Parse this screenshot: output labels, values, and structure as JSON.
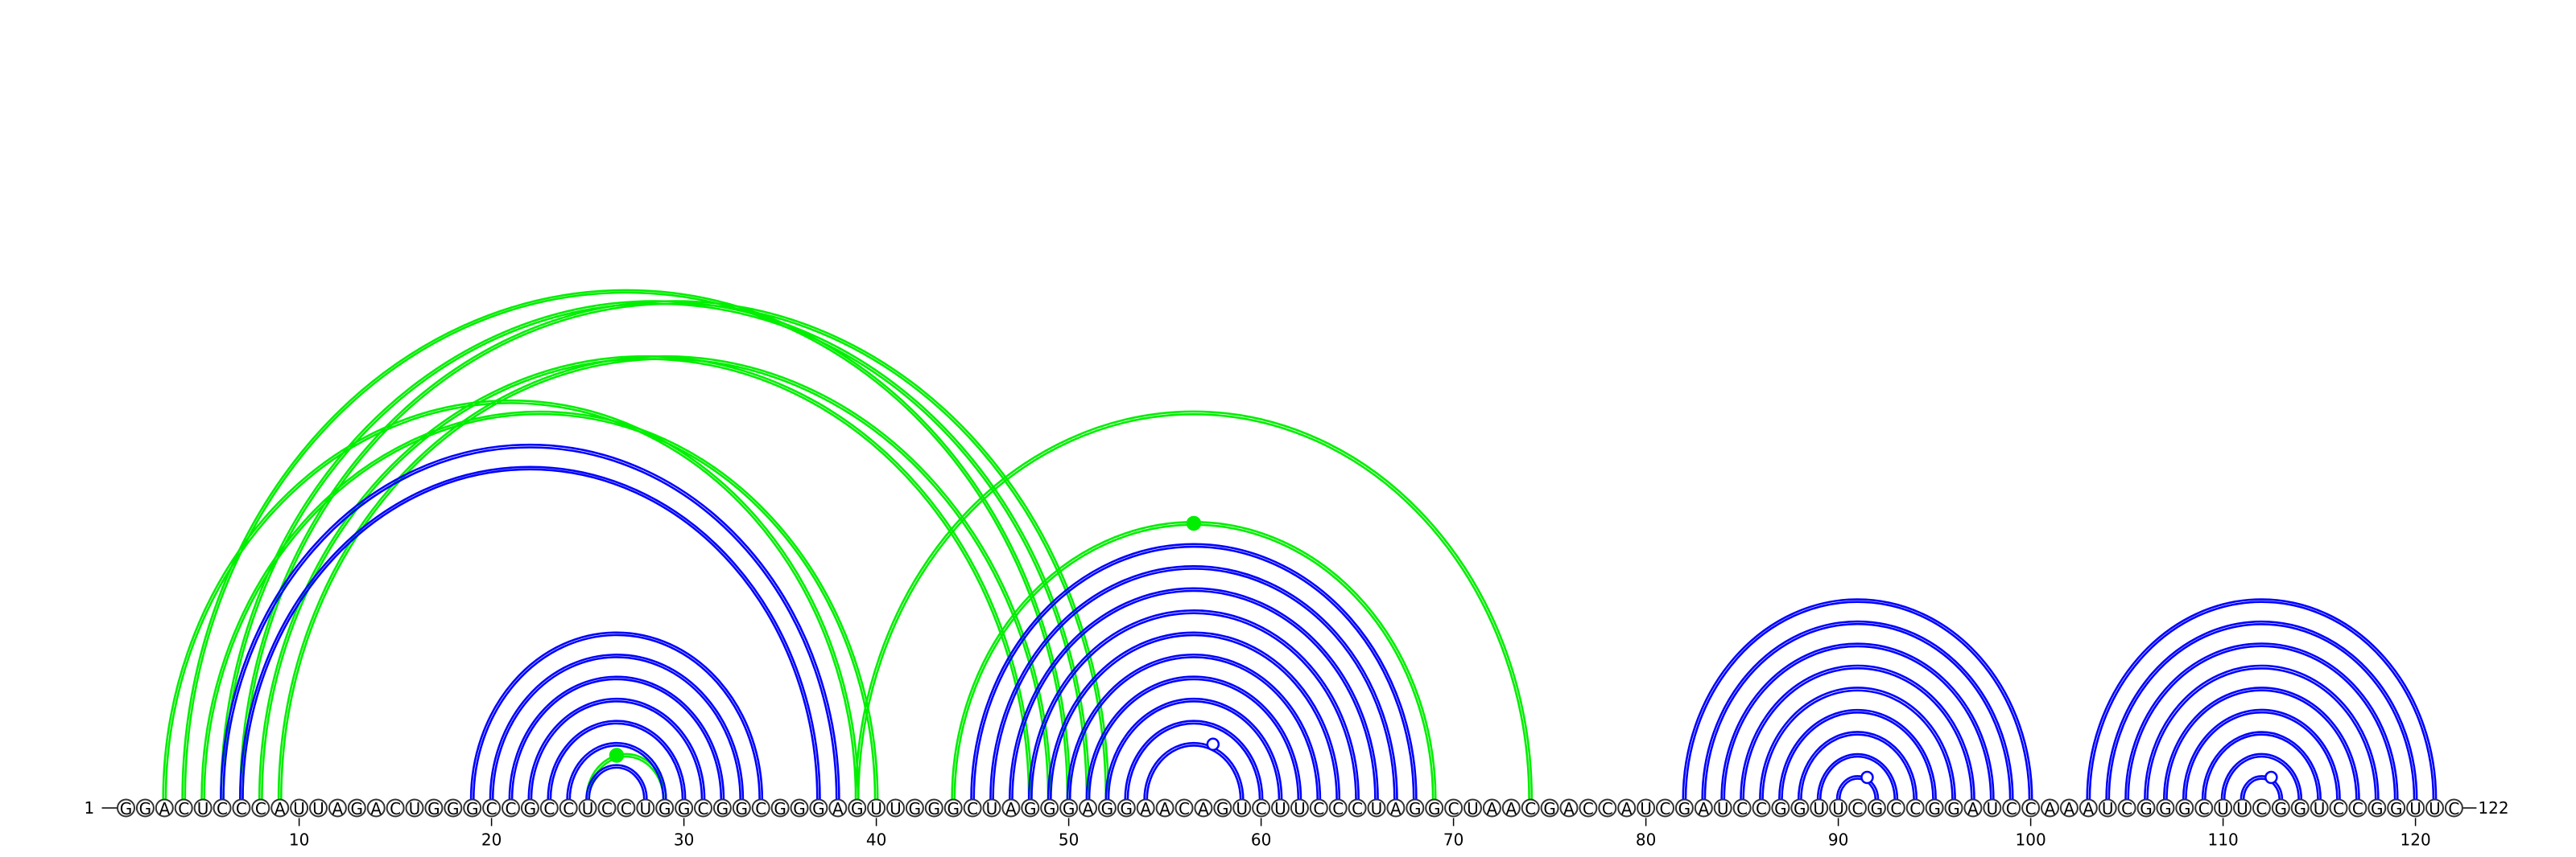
{
  "diagram": {
    "sequence": "GGACUCCCAUUAGACUGGGCCGCCUCCUGGCGGCGGGAGUUGGGCUAGGGAGGAACAGUCUUCCCUAGGCUAACGACCAUCGAUCCGGUUCGCCGGAUCCAAAUCGGGCUUCGGUCCGGUUC",
    "length": 122,
    "start_label": "1",
    "end_label": "122",
    "ticks": [
      10,
      20,
      30,
      40,
      50,
      60,
      70,
      80,
      90,
      100,
      110,
      120
    ],
    "colors": {
      "blue_structure": "#0000ff",
      "green_structure": "#00ee00",
      "nucleotide_outline": "#333333"
    },
    "blue_pairs": [
      [
        6,
        38
      ],
      [
        7,
        37
      ],
      [
        19,
        34
      ],
      [
        20,
        33
      ],
      [
        21,
        32
      ],
      [
        22,
        31
      ],
      [
        23,
        30
      ],
      [
        24,
        29
      ],
      [
        25,
        28
      ],
      [
        45,
        68
      ],
      [
        46,
        67
      ],
      [
        47,
        66
      ],
      [
        48,
        65
      ],
      [
        49,
        64
      ],
      [
        50,
        63
      ],
      [
        51,
        62
      ],
      [
        52,
        61
      ],
      [
        53,
        60
      ],
      [
        54,
        59
      ],
      [
        82,
        100
      ],
      [
        83,
        99
      ],
      [
        84,
        98
      ],
      [
        85,
        97
      ],
      [
        86,
        96
      ],
      [
        87,
        95
      ],
      [
        88,
        94
      ],
      [
        89,
        93
      ],
      [
        90,
        92
      ],
      [
        103,
        121
      ],
      [
        104,
        120
      ],
      [
        105,
        119
      ],
      [
        106,
        118
      ],
      [
        107,
        117
      ],
      [
        108,
        116
      ],
      [
        109,
        115
      ],
      [
        110,
        114
      ],
      [
        111,
        113
      ]
    ],
    "green_pairs": [
      [
        3,
        39
      ],
      [
        4,
        50
      ],
      [
        5,
        40
      ],
      [
        6,
        51
      ],
      [
        7,
        52
      ],
      [
        8,
        48
      ],
      [
        9,
        49
      ],
      [
        25,
        29
      ],
      [
        39,
        74
      ],
      [
        44,
        69
      ]
    ],
    "blue_markers": [
      57,
      91,
      112
    ],
    "green_markers": [
      27,
      57
    ]
  }
}
